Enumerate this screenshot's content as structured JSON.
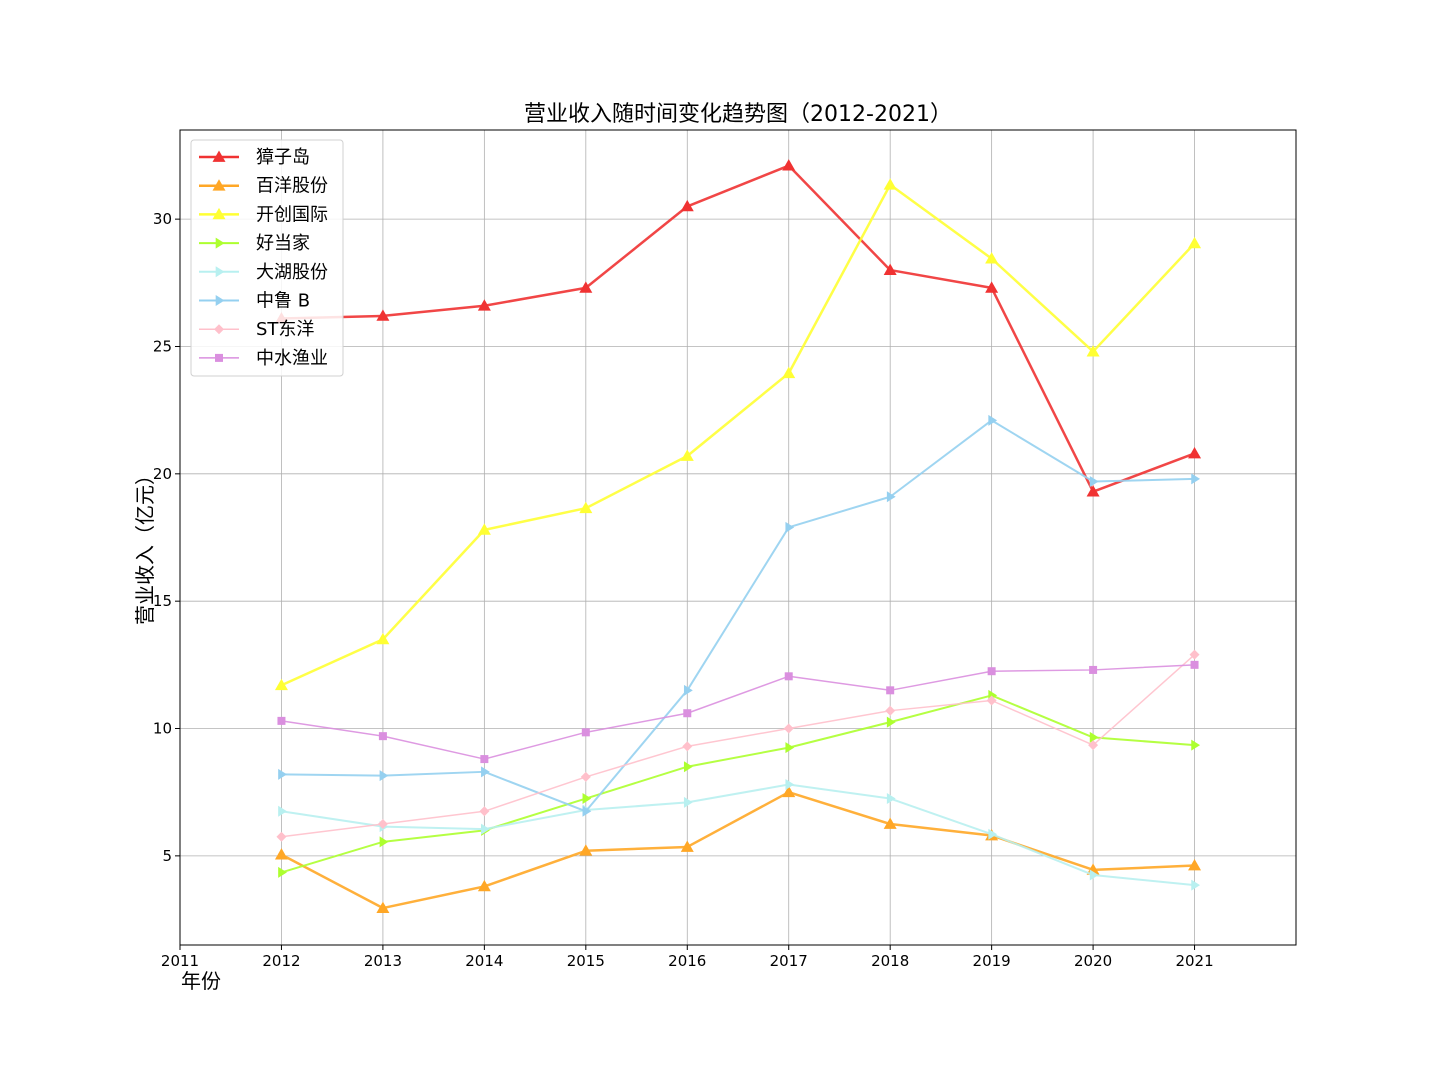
{
  "chart_data": {
    "type": "line",
    "title": "营业收入随时间变化趋势图（2012-2021）",
    "xlabel": "年份",
    "ylabel": "营业收入（亿元）",
    "x": [
      2012,
      2013,
      2014,
      2015,
      2016,
      2017,
      2018,
      2019,
      2020,
      2021
    ],
    "xlim": [
      2011,
      2022
    ],
    "xticks": [
      "2011",
      "2012",
      "2013",
      "2014",
      "2015",
      "2016",
      "2017",
      "2018",
      "2019",
      "2020",
      "2021"
    ],
    "ylim": [
      1.5,
      33.5
    ],
    "yticks": [
      "5",
      "10",
      "15",
      "20",
      "25",
      "30"
    ],
    "grid": true,
    "legend_position": "top-left",
    "series": [
      {
        "name": "獐子岛",
        "color": "#f03232",
        "marker": "triangle-up",
        "width": 2.5,
        "values": [
          26.1,
          26.2,
          26.6,
          27.3,
          30.5,
          32.1,
          28.0,
          27.3,
          19.3,
          20.8
        ]
      },
      {
        "name": "百洋股份",
        "color": "#ffa726",
        "marker": "triangle-up",
        "width": 2.5,
        "values": [
          5.05,
          2.95,
          3.8,
          5.2,
          5.35,
          7.5,
          6.25,
          5.8,
          4.45,
          4.62
        ]
      },
      {
        "name": "开创国际",
        "color": "#ffff33",
        "marker": "triangle-up",
        "width": 2.5,
        "values": [
          11.7,
          13.5,
          17.8,
          18.65,
          20.7,
          23.95,
          31.35,
          28.45,
          24.8,
          29.05
        ]
      },
      {
        "name": "好当家",
        "color": "#adff2f",
        "marker": "triangle-right",
        "width": 2,
        "values": [
          4.35,
          5.55,
          6.0,
          7.25,
          8.5,
          9.25,
          10.25,
          11.3,
          9.65,
          9.35
        ]
      },
      {
        "name": "大湖股份",
        "color": "#b8f0f0",
        "marker": "triangle-right",
        "width": 2,
        "values": [
          6.75,
          6.15,
          6.05,
          6.8,
          7.1,
          7.8,
          7.25,
          5.85,
          4.25,
          3.85
        ]
      },
      {
        "name": "中鲁 B",
        "color": "#95d0f0",
        "marker": "triangle-right",
        "width": 2,
        "values": [
          8.2,
          8.15,
          8.3,
          6.75,
          11.5,
          17.9,
          19.1,
          22.1,
          19.7,
          19.8
        ]
      },
      {
        "name": "ST东洋",
        "color": "#ffc0cb",
        "marker": "diamond",
        "width": 1.5,
        "values": [
          5.75,
          6.25,
          6.75,
          8.1,
          9.3,
          10.0,
          10.7,
          11.1,
          9.35,
          12.9
        ]
      },
      {
        "name": "中水渔业",
        "color": "#da8fdf",
        "marker": "square",
        "width": 1.5,
        "values": [
          10.3,
          9.7,
          8.8,
          9.85,
          10.6,
          12.05,
          11.5,
          12.25,
          12.3,
          12.5
        ]
      }
    ]
  }
}
